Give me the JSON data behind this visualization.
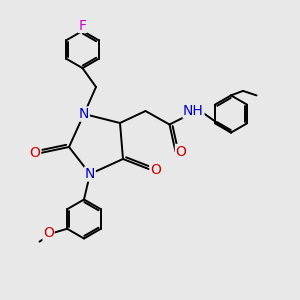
{
  "bg_color": "#e8e8e8",
  "atom_colors": {
    "N": "#0000cc",
    "O": "#cc0000",
    "F": "#cc00cc",
    "H": "#008080",
    "C": "#000000"
  },
  "bond_color": "#000000",
  "bond_width": 1.4,
  "font_size_atoms": 10
}
